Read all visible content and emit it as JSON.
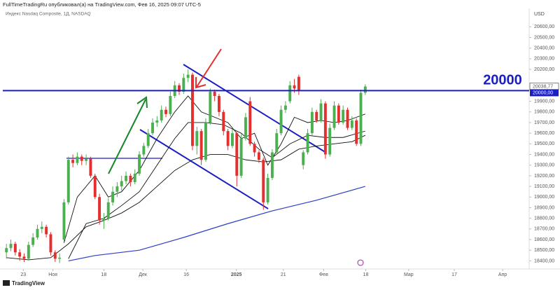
{
  "header": "FullTimeTradingRu опубликовал(а) на TradingView.com, Фев 16, 2025 09:07 UTC-5",
  "footer": "TradingView",
  "chart_data": {
    "type": "candlestick",
    "title": "Индекс Nasdaq Composite, 1Д, NASDAQ",
    "currency": "USD",
    "up_color": "#4caf50",
    "down_color": "#e3302f",
    "grid": false,
    "ylim": [
      18350,
      20760
    ],
    "yticks": [
      {
        "value": 18400,
        "label": "18400,00"
      },
      {
        "value": 18500,
        "label": "18500,00"
      },
      {
        "value": 18600,
        "label": "18600,00"
      },
      {
        "value": 18700,
        "label": "18700,00"
      },
      {
        "value": 18800,
        "label": "18800,00"
      },
      {
        "value": 18900,
        "label": "18900,00"
      },
      {
        "value": 19000,
        "label": "19000,00"
      },
      {
        "value": 19100,
        "label": "19100,00"
      },
      {
        "value": 19200,
        "label": "19200,00"
      },
      {
        "value": 19300,
        "label": "19300,00"
      },
      {
        "value": 19400,
        "label": "19400,00"
      },
      {
        "value": 19500,
        "label": "19500,00"
      },
      {
        "value": 19600,
        "label": "19600,00"
      },
      {
        "value": 19700,
        "label": "19700,00"
      },
      {
        "value": 19800,
        "label": "19800,00"
      },
      {
        "value": 19900,
        "label": "19900,00"
      },
      {
        "value": 20200,
        "label": "20200,00"
      },
      {
        "value": 20300,
        "label": "20300,00"
      },
      {
        "value": 20400,
        "label": "20400,00"
      },
      {
        "value": 20500,
        "label": "20500,00"
      },
      {
        "value": 20600,
        "label": "20600,00"
      }
    ],
    "xlim": [
      -0.5,
      118
    ],
    "xticks": [
      {
        "value": 3.8,
        "label": "23"
      },
      {
        "value": 10.5,
        "label": "Ноя"
      },
      {
        "value": 22,
        "label": "18"
      },
      {
        "value": 30.8,
        "label": "Дек"
      },
      {
        "value": 40.6,
        "label": "16"
      },
      {
        "value": 51.9,
        "label": "2025"
      },
      {
        "value": 62.5,
        "label": "21"
      },
      {
        "value": 71.6,
        "label": "Фев"
      },
      {
        "value": 81.1,
        "label": "18"
      },
      {
        "value": 90.8,
        "label": "Мар"
      },
      {
        "value": 101.1,
        "label": "17"
      },
      {
        "value": 112,
        "label": "Апр"
      }
    ],
    "candles": [
      [
        18480,
        18560,
        18420,
        18520
      ],
      [
        18520,
        18600,
        18490,
        18560
      ],
      [
        18560,
        18580,
        18450,
        18480
      ],
      [
        18480,
        18510,
        18400,
        18440
      ],
      [
        18440,
        18470,
        18390,
        18420
      ],
      [
        18420,
        18580,
        18410,
        18550
      ],
      [
        18550,
        18660,
        18530,
        18620
      ],
      [
        18620,
        18740,
        18600,
        18700
      ],
      [
        18700,
        18770,
        18660,
        18720
      ],
      [
        18720,
        18740,
        18620,
        18650
      ],
      [
        18650,
        18670,
        18450,
        18480
      ],
      [
        18480,
        18500,
        18390,
        18420
      ],
      [
        18420,
        18470,
        18380,
        18430
      ],
      [
        18600,
        18980,
        18580,
        18950
      ],
      [
        18950,
        19380,
        18930,
        19350
      ],
      [
        19350,
        19400,
        19280,
        19320
      ],
      [
        19320,
        19420,
        19300,
        19380
      ],
      [
        19380,
        19400,
        19300,
        19340
      ],
      [
        19340,
        19400,
        19300,
        19360
      ],
      [
        19360,
        19380,
        19180,
        19200
      ],
      [
        19200,
        19220,
        18980,
        19000
      ],
      [
        19000,
        19030,
        18740,
        18780
      ],
      [
        18780,
        18850,
        18700,
        18800
      ],
      [
        18800,
        18990,
        18780,
        18950
      ],
      [
        18950,
        19100,
        18920,
        19050
      ],
      [
        19050,
        19140,
        19000,
        19100
      ],
      [
        19100,
        19200,
        19060,
        19150
      ],
      [
        19150,
        19240,
        19120,
        19200
      ],
      [
        19200,
        19220,
        19100,
        19140
      ],
      [
        19140,
        19260,
        19120,
        19220
      ],
      [
        19220,
        19430,
        19200,
        19400
      ],
      [
        19400,
        19510,
        19380,
        19480
      ],
      [
        19480,
        19640,
        19460,
        19600
      ],
      [
        19600,
        19740,
        19580,
        19700
      ],
      [
        19700,
        19760,
        19660,
        19720
      ],
      [
        19720,
        19860,
        19700,
        19820
      ],
      [
        19820,
        19850,
        19750,
        19780
      ],
      [
        19780,
        19990,
        19760,
        19950
      ],
      [
        19950,
        20090,
        19930,
        20050
      ],
      [
        20050,
        20070,
        19960,
        19990
      ],
      [
        19990,
        20160,
        19970,
        20120
      ],
      [
        20120,
        20200,
        20080,
        20150
      ],
      [
        20150,
        20170,
        19440,
        19480
      ],
      [
        19480,
        19660,
        19400,
        19620
      ],
      [
        19620,
        19640,
        19300,
        19350
      ],
      [
        19350,
        19740,
        19330,
        19700
      ],
      [
        19700,
        20020,
        19680,
        19990
      ],
      [
        19990,
        20010,
        19900,
        19950
      ],
      [
        19950,
        19970,
        19760,
        19800
      ],
      [
        19800,
        19820,
        19580,
        19620
      ],
      [
        19620,
        19640,
        19440,
        19480
      ],
      [
        19480,
        19640,
        19460,
        19600
      ],
      [
        19600,
        19610,
        19100,
        19200
      ],
      [
        19200,
        19590,
        19180,
        19550
      ],
      [
        19550,
        19790,
        19530,
        19750
      ],
      [
        19900,
        19940,
        19480,
        19500
      ],
      [
        19500,
        19520,
        19380,
        19420
      ],
      [
        19420,
        19440,
        19320,
        19350
      ],
      [
        19350,
        19370,
        18880,
        18950
      ],
      [
        18950,
        19220,
        18930,
        19180
      ],
      [
        19180,
        19450,
        19160,
        19420
      ],
      [
        19420,
        19640,
        19400,
        19600
      ],
      [
        19600,
        19860,
        19580,
        19820
      ],
      [
        19820,
        19900,
        19790,
        19860
      ],
      [
        19900,
        20090,
        19880,
        20050
      ],
      [
        20050,
        20110,
        19980,
        20020
      ],
      [
        20130,
        20150,
        19960,
        20000
      ],
      [
        19300,
        19440,
        19260,
        19420
      ],
      [
        19420,
        19640,
        19400,
        19600
      ],
      [
        19600,
        19840,
        19580,
        19800
      ],
      [
        19800,
        19820,
        19700,
        19720
      ],
      [
        19720,
        19920,
        19700,
        19880
      ],
      [
        19880,
        19900,
        19360,
        19400
      ],
      [
        19400,
        19690,
        19380,
        19650
      ],
      [
        19650,
        19900,
        19630,
        19860
      ],
      [
        19860,
        19880,
        19680,
        19700
      ],
      [
        19700,
        19860,
        19680,
        19820
      ],
      [
        19820,
        19840,
        19630,
        19650
      ],
      [
        19650,
        19760,
        19630,
        19720
      ],
      [
        19720,
        19740,
        19480,
        19500
      ],
      [
        19500,
        20010,
        19480,
        19980
      ],
      [
        19980,
        20060,
        19960,
        20038.77
      ]
    ],
    "overlays": [
      {
        "color": "#111111",
        "points": [
          [
            13,
            18570
          ],
          [
            16,
            19000
          ],
          [
            20,
            19200
          ],
          [
            23,
            19000
          ],
          [
            26,
            19050
          ],
          [
            30,
            19250
          ],
          [
            34,
            19550
          ],
          [
            38,
            19800
          ],
          [
            41,
            19950
          ],
          [
            44,
            19800
          ],
          [
            47,
            19750
          ],
          [
            50,
            19700
          ],
          [
            53,
            19550
          ],
          [
            56,
            19600
          ],
          [
            59,
            19300
          ],
          [
            62,
            19500
          ],
          [
            65,
            19750
          ],
          [
            68,
            19700
          ],
          [
            71,
            19720
          ],
          [
            74,
            19700
          ],
          [
            77,
            19720
          ],
          [
            81,
            19780
          ]
        ]
      },
      {
        "color": "#111111",
        "points": [
          [
            14,
            18420
          ],
          [
            18,
            18750
          ],
          [
            22,
            18800
          ],
          [
            26,
            18920
          ],
          [
            30,
            19050
          ],
          [
            34,
            19300
          ],
          [
            38,
            19550
          ],
          [
            41,
            19700
          ],
          [
            45,
            19700
          ],
          [
            49,
            19680
          ],
          [
            53,
            19600
          ],
          [
            57,
            19450
          ],
          [
            60,
            19370
          ],
          [
            64,
            19500
          ],
          [
            68,
            19580
          ],
          [
            72,
            19560
          ],
          [
            76,
            19560
          ],
          [
            81,
            19620
          ]
        ]
      },
      {
        "color": "#111111",
        "points": [
          [
            0,
            18430
          ],
          [
            5,
            18410
          ],
          [
            10,
            18430
          ],
          [
            14,
            18560
          ],
          [
            18,
            18720
          ],
          [
            22,
            18780
          ],
          [
            26,
            18850
          ],
          [
            30,
            18950
          ],
          [
            34,
            19100
          ],
          [
            38,
            19250
          ],
          [
            42,
            19350
          ],
          [
            46,
            19400
          ],
          [
            50,
            19400
          ],
          [
            54,
            19350
          ],
          [
            58,
            19330
          ],
          [
            62,
            19350
          ],
          [
            66,
            19450
          ],
          [
            70,
            19480
          ],
          [
            74,
            19500
          ],
          [
            78,
            19520
          ],
          [
            81,
            19580
          ]
        ]
      },
      {
        "color": "#2b3fc9",
        "points": [
          [
            14,
            18400
          ],
          [
            20,
            18450
          ],
          [
            30,
            18500
          ],
          [
            40,
            18620
          ],
          [
            50,
            18750
          ],
          [
            60,
            18870
          ],
          [
            70,
            18970
          ],
          [
            81,
            19100
          ]
        ]
      }
    ],
    "level": {
      "value": 20000,
      "label": "20000",
      "color": "#1a1fc2"
    },
    "level_badge": {
      "value": 20000,
      "label": "20000,00"
    },
    "last_price": {
      "value": 20038.77,
      "label": "20038,77"
    }
  }
}
